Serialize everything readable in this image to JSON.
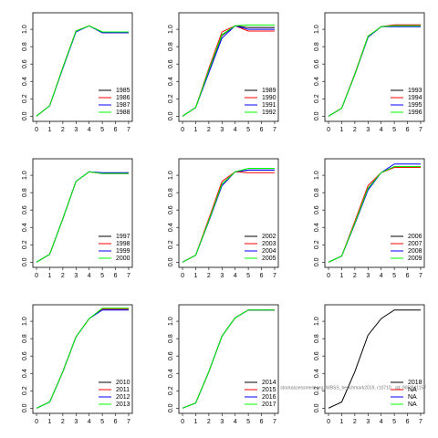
{
  "chart_data": [
    {
      "type": "line",
      "x": [
        0,
        1,
        2,
        3,
        4,
        5,
        6,
        7
      ],
      "xlim": [
        -0.28,
        7.28
      ],
      "ylim": [
        -0.06,
        1.19
      ],
      "xticks": [
        0,
        1,
        2,
        3,
        4,
        5,
        6,
        7
      ],
      "yticks": [
        {
          "value": 0,
          "label": "0.0"
        },
        0.2,
        0.4,
        0.6,
        0.8,
        {
          "value": 1,
          "label": "1.0"
        }
      ],
      "legend": "bottom right",
      "series": [
        {
          "name": "1985",
          "color": "#000000",
          "values": [
            0,
            0.12,
            0.56,
            0.98,
            1.04,
            0.97,
            0.97,
            0.97
          ]
        },
        {
          "name": "1986",
          "color": "#ff0000",
          "values": [
            0,
            0.12,
            0.56,
            0.98,
            1.04,
            0.96,
            0.96,
            0.96
          ]
        },
        {
          "name": "1987",
          "color": "#0000ff",
          "values": [
            0,
            0.12,
            0.55,
            0.97,
            1.04,
            0.96,
            0.96,
            0.96
          ]
        },
        {
          "name": "1988",
          "color": "#00ff00",
          "values": [
            0,
            0.12,
            0.56,
            0.98,
            1.04,
            0.97,
            0.97,
            0.97
          ]
        }
      ]
    },
    {
      "type": "line",
      "x": [
        0,
        1,
        2,
        3,
        4,
        5,
        6,
        7
      ],
      "xlim": [
        -0.28,
        7.28
      ],
      "ylim": [
        -0.06,
        1.19
      ],
      "xticks": [
        0,
        1,
        2,
        3,
        4,
        5,
        6,
        7
      ],
      "yticks": [
        {
          "value": 0,
          "label": "0.0"
        },
        0.2,
        0.4,
        0.6,
        0.8,
        {
          "value": 1,
          "label": "1.0"
        }
      ],
      "legend": "bottom right",
      "series": [
        {
          "name": "1989",
          "color": "#000000",
          "values": [
            0,
            0.1,
            0.52,
            0.93,
            1.04,
            1.02,
            1.02,
            1.02
          ]
        },
        {
          "name": "1990",
          "color": "#ff0000",
          "values": [
            0,
            0.1,
            0.55,
            0.97,
            1.04,
            0.98,
            0.98,
            0.98
          ]
        },
        {
          "name": "1991",
          "color": "#0000ff",
          "values": [
            0,
            0.1,
            0.5,
            0.9,
            1.04,
            1.0,
            1.0,
            1.0
          ]
        },
        {
          "name": "1992",
          "color": "#00ff00",
          "values": [
            0,
            0.1,
            0.53,
            0.94,
            1.04,
            1.05,
            1.05,
            1.05
          ]
        }
      ]
    },
    {
      "type": "line",
      "x": [
        0,
        1,
        2,
        3,
        4,
        5,
        6,
        7
      ],
      "xlim": [
        -0.28,
        7.28
      ],
      "ylim": [
        -0.06,
        1.19
      ],
      "xticks": [
        0,
        1,
        2,
        3,
        4,
        5,
        6,
        7
      ],
      "yticks": [
        {
          "value": 0,
          "label": "0.0"
        },
        0.2,
        0.4,
        0.6,
        0.8,
        {
          "value": 1,
          "label": "1.0"
        }
      ],
      "legend": "bottom right",
      "series": [
        {
          "name": "1993",
          "color": "#000000",
          "values": [
            0,
            0.09,
            0.48,
            0.91,
            1.03,
            1.05,
            1.05,
            1.05
          ]
        },
        {
          "name": "1994",
          "color": "#ff0000",
          "values": [
            0,
            0.09,
            0.49,
            0.92,
            1.03,
            1.05,
            1.05,
            1.05
          ]
        },
        {
          "name": "1995",
          "color": "#0000ff",
          "values": [
            0,
            0.09,
            0.48,
            0.91,
            1.03,
            1.03,
            1.03,
            1.03
          ]
        },
        {
          "name": "1996",
          "color": "#00ff00",
          "values": [
            0,
            0.09,
            0.48,
            0.92,
            1.03,
            1.04,
            1.04,
            1.04
          ]
        }
      ]
    },
    {
      "type": "line",
      "x": [
        0,
        1,
        2,
        3,
        4,
        5,
        6,
        7
      ],
      "xlim": [
        -0.28,
        7.28
      ],
      "ylim": [
        -0.06,
        1.19
      ],
      "xticks": [
        0,
        1,
        2,
        3,
        4,
        5,
        6,
        7
      ],
      "yticks": [
        {
          "value": 0,
          "label": "0.0"
        },
        0.2,
        0.4,
        0.6,
        0.8,
        {
          "value": 1,
          "label": "1.0"
        }
      ],
      "legend": "bottom right",
      "series": [
        {
          "name": "1997",
          "color": "#000000",
          "values": [
            0,
            0.09,
            0.5,
            0.93,
            1.04,
            1.02,
            1.02,
            1.02
          ]
        },
        {
          "name": "1998",
          "color": "#ff0000",
          "values": [
            0,
            0.09,
            0.5,
            0.93,
            1.04,
            1.02,
            1.02,
            1.02
          ]
        },
        {
          "name": "1999",
          "color": "#0000ff",
          "values": [
            0,
            0.09,
            0.5,
            0.93,
            1.04,
            1.03,
            1.03,
            1.03
          ]
        },
        {
          "name": "2000",
          "color": "#00ff00",
          "values": [
            0,
            0.09,
            0.5,
            0.93,
            1.04,
            1.02,
            1.02,
            1.02
          ]
        }
      ]
    },
    {
      "type": "line",
      "x": [
        0,
        1,
        2,
        3,
        4,
        5,
        6,
        7
      ],
      "xlim": [
        -0.28,
        7.28
      ],
      "ylim": [
        -0.06,
        1.19
      ],
      "xticks": [
        0,
        1,
        2,
        3,
        4,
        5,
        6,
        7
      ],
      "yticks": [
        {
          "value": 0,
          "label": "0.0"
        },
        0.2,
        0.4,
        0.6,
        0.8,
        {
          "value": 1,
          "label": "1.0"
        }
      ],
      "legend": "bottom right",
      "series": [
        {
          "name": "2002",
          "color": "#000000",
          "values": [
            0,
            0.08,
            0.48,
            0.9,
            1.04,
            1.06,
            1.06,
            1.06
          ]
        },
        {
          "name": "2003",
          "color": "#ff0000",
          "values": [
            0,
            0.08,
            0.5,
            0.93,
            1.04,
            1.03,
            1.03,
            1.03
          ]
        },
        {
          "name": "2004",
          "color": "#0000ff",
          "values": [
            0,
            0.08,
            0.47,
            0.88,
            1.04,
            1.06,
            1.06,
            1.06
          ]
        },
        {
          "name": "2005",
          "color": "#00ff00",
          "values": [
            0,
            0.08,
            0.48,
            0.9,
            1.04,
            1.08,
            1.08,
            1.08
          ]
        }
      ]
    },
    {
      "type": "line",
      "x": [
        0,
        1,
        2,
        3,
        4,
        5,
        6,
        7
      ],
      "xlim": [
        -0.28,
        7.28
      ],
      "ylim": [
        -0.06,
        1.19
      ],
      "xticks": [
        0,
        1,
        2,
        3,
        4,
        5,
        6,
        7
      ],
      "yticks": [
        {
          "value": 0,
          "label": "0.0"
        },
        0.2,
        0.4,
        0.6,
        0.8,
        {
          "value": 1,
          "label": "1.0"
        }
      ],
      "legend": "bottom right",
      "series": [
        {
          "name": "2006",
          "color": "#000000",
          "values": [
            0,
            0.07,
            0.45,
            0.85,
            1.03,
            1.1,
            1.1,
            1.1
          ]
        },
        {
          "name": "2007",
          "color": "#ff0000",
          "values": [
            0,
            0.07,
            0.47,
            0.88,
            1.03,
            1.09,
            1.09,
            1.09
          ]
        },
        {
          "name": "2008",
          "color": "#0000ff",
          "values": [
            0,
            0.07,
            0.44,
            0.83,
            1.03,
            1.13,
            1.13,
            1.13
          ]
        },
        {
          "name": "2009",
          "color": "#00ff00",
          "values": [
            0,
            0.07,
            0.45,
            0.85,
            1.03,
            1.1,
            1.1,
            1.1
          ]
        }
      ]
    },
    {
      "type": "line",
      "x": [
        0,
        1,
        2,
        3,
        4,
        5,
        6,
        7
      ],
      "xlim": [
        -0.28,
        7.28
      ],
      "ylim": [
        -0.06,
        1.19
      ],
      "xticks": [
        0,
        1,
        2,
        3,
        4,
        5,
        6,
        7
      ],
      "yticks": [
        {
          "value": 0,
          "label": "0.0"
        },
        0.2,
        0.4,
        0.6,
        0.8,
        {
          "value": 1,
          "label": "1.0"
        }
      ],
      "legend": "bottom right",
      "series": [
        {
          "name": "2010",
          "color": "#000000",
          "values": [
            0,
            0.07,
            0.42,
            0.82,
            1.03,
            1.14,
            1.14,
            1.14
          ]
        },
        {
          "name": "2011",
          "color": "#ff0000",
          "values": [
            0,
            0.07,
            0.42,
            0.82,
            1.03,
            1.14,
            1.14,
            1.14
          ]
        },
        {
          "name": "2012",
          "color": "#0000ff",
          "values": [
            0,
            0.07,
            0.42,
            0.82,
            1.03,
            1.13,
            1.13,
            1.13
          ]
        },
        {
          "name": "2013",
          "color": "#00ff00",
          "values": [
            0,
            0.07,
            0.42,
            0.82,
            1.03,
            1.15,
            1.15,
            1.15
          ]
        }
      ]
    },
    {
      "type": "line",
      "x": [
        0,
        1,
        2,
        3,
        4,
        5,
        6,
        7
      ],
      "xlim": [
        -0.28,
        7.28
      ],
      "ylim": [
        -0.06,
        1.19
      ],
      "xticks": [
        0,
        1,
        2,
        3,
        4,
        5,
        6,
        7
      ],
      "yticks": [
        {
          "value": 0,
          "label": "0.0"
        },
        0.2,
        0.4,
        0.6,
        0.8,
        {
          "value": 1,
          "label": "1.0"
        }
      ],
      "legend": "bottom right",
      "series": [
        {
          "name": "2014",
          "color": "#000000",
          "values": [
            0,
            0.06,
            0.42,
            0.83,
            1.04,
            1.13,
            1.13,
            1.13
          ]
        },
        {
          "name": "2015",
          "color": "#ff0000",
          "values": [
            0,
            0.06,
            0.42,
            0.83,
            1.04,
            1.13,
            1.13,
            1.13
          ]
        },
        {
          "name": "2016",
          "color": "#0000ff",
          "values": [
            0,
            0.06,
            0.42,
            0.83,
            1.04,
            1.13,
            1.13,
            1.13
          ]
        },
        {
          "name": "2017",
          "color": "#00ff00",
          "values": [
            0,
            0.06,
            0.42,
            0.83,
            1.04,
            1.13,
            1.13,
            1.13
          ]
        }
      ]
    },
    {
      "type": "line",
      "x": [
        0,
        1,
        2,
        3,
        4,
        5,
        6,
        7
      ],
      "xlim": [
        -0.28,
        7.28
      ],
      "ylim": [
        -0.06,
        1.19
      ],
      "xticks": [
        0,
        1,
        2,
        3,
        4,
        5,
        6,
        7
      ],
      "yticks": [
        {
          "value": 0,
          "label": "0.0"
        },
        0.2,
        0.4,
        0.6,
        0.8,
        {
          "value": 1,
          "label": "1.0"
        }
      ],
      "legend": "bottom right",
      "annotation": "stockassessment.org, WBSS_benchmark2019, r10710 , git: 905f0d1157",
      "series": [
        {
          "name": "2018",
          "color": "#000000",
          "values": [
            0,
            0.07,
            0.42,
            0.84,
            1.03,
            1.13,
            1.13,
            1.13
          ]
        },
        {
          "name": "NA",
          "color": "#ff0000",
          "values": [
            null,
            null,
            null,
            null,
            null,
            null,
            null,
            null
          ]
        },
        {
          "name": "NA",
          "color": "#0000ff",
          "values": [
            null,
            null,
            null,
            null,
            null,
            null,
            null,
            null
          ]
        },
        {
          "name": "NA",
          "color": "#00ff00",
          "values": [
            null,
            null,
            null,
            null,
            null,
            null,
            null,
            null
          ]
        }
      ]
    }
  ]
}
